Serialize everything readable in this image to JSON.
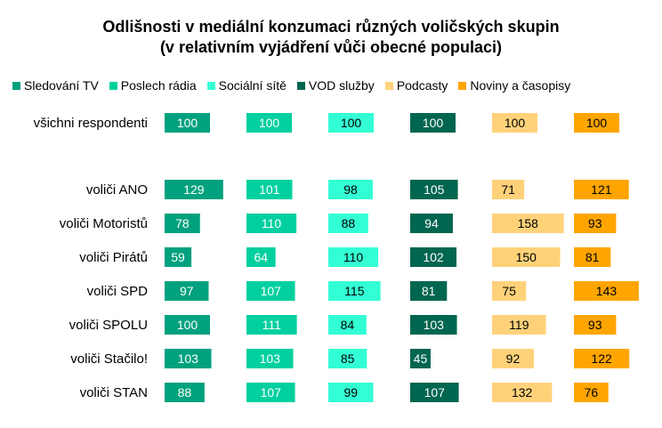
{
  "chart_data": {
    "type": "bar",
    "title": "Odlišnosti v mediální konzumaci různých voličských skupin",
    "subtitle": "(v relativním vyjádření vůči obecné populaci)",
    "categories": [
      "všichni respondenti",
      "voliči ANO",
      "voliči Motoristů",
      "voliči Pirátů",
      "voliči SPD",
      "voliči SPOLU",
      "voliči Stačilo!",
      "voliči STAN"
    ],
    "legend_position": "top",
    "series": [
      {
        "name": "Sledování TV",
        "color": "#00a17e",
        "label_color": "#ffffff",
        "values": [
          100,
          129,
          78,
          59,
          97,
          100,
          103,
          88
        ]
      },
      {
        "name": "Poslech rádia",
        "color": "#00d0a0",
        "label_color": "#ffffff",
        "values": [
          100,
          101,
          110,
          64,
          107,
          111,
          103,
          107
        ]
      },
      {
        "name": "Sociální sítě",
        "color": "#33ffd4",
        "label_color": "#000000",
        "values": [
          100,
          98,
          88,
          110,
          115,
          84,
          85,
          99
        ]
      },
      {
        "name": "VOD služby",
        "color": "#00664f",
        "label_color": "#ffffff",
        "values": [
          100,
          105,
          94,
          102,
          81,
          103,
          45,
          107
        ]
      },
      {
        "name": "Podcasty",
        "color": "#ffd27a",
        "label_color": "#000000",
        "values": [
          100,
          71,
          158,
          150,
          75,
          119,
          92,
          132
        ]
      },
      {
        "name": "Noviny a časopisy",
        "color": "#ffa500",
        "label_color": "#000000",
        "values": [
          100,
          121,
          93,
          81,
          143,
          93,
          122,
          76
        ]
      }
    ]
  }
}
